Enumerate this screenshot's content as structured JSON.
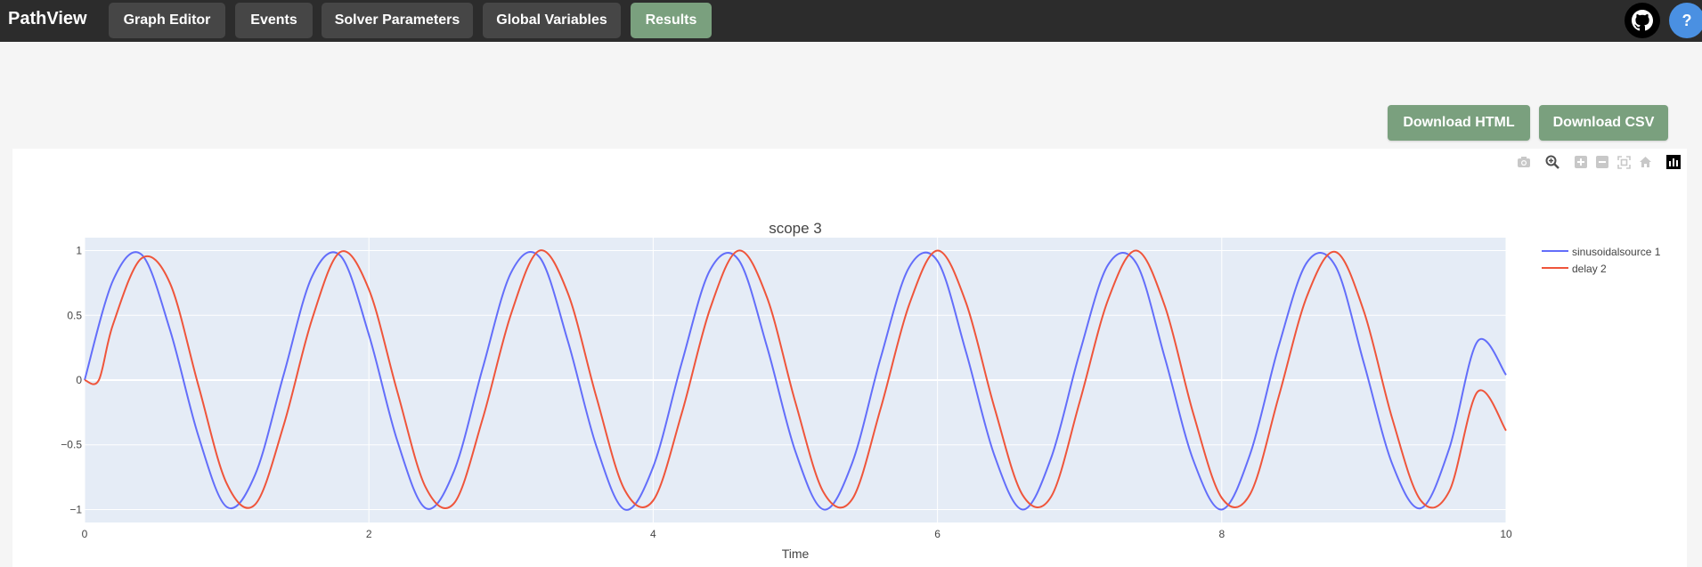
{
  "app": {
    "brand": "PathView"
  },
  "nav": {
    "tabs": [
      {
        "label": "Graph Editor"
      },
      {
        "label": "Events"
      },
      {
        "label": "Solver Parameters"
      },
      {
        "label": "Global Variables"
      },
      {
        "label": "Results"
      }
    ],
    "active_tab": "Results",
    "github_icon": "github-icon",
    "help_label": "?"
  },
  "actions": {
    "download_html": "Download HTML",
    "download_csv": "Download CSV"
  },
  "modebar": {
    "icons": [
      "camera-icon",
      "zoom-icon",
      "zoom-in-icon",
      "zoom-out-icon",
      "autoscale-icon",
      "home-icon",
      "plotly-logo-icon"
    ]
  },
  "colors": {
    "accent": "#7aa07e",
    "topbar": "#2c2c2c",
    "help": "#4a90e2",
    "series1": "#636efa",
    "series2": "#ef553b",
    "plot_bg": "#e5ecf6"
  },
  "chart_data": {
    "type": "line",
    "title": "scope 3",
    "xlabel": "Time",
    "ylabel": "",
    "xlim": [
      0,
      10
    ],
    "ylim": [
      -1.1,
      1.1
    ],
    "xticks": [
      0,
      2,
      4,
      6,
      8,
      10
    ],
    "yticks": [
      -1,
      -0.5,
      0,
      0.5,
      1
    ],
    "ytick_labels": [
      "−1",
      "−0.5",
      "0",
      "0.5",
      "1"
    ],
    "xtick_labels": [
      "0",
      "2",
      "4",
      "6",
      "8",
      "10"
    ],
    "grid": true,
    "legend_position": "right",
    "series": [
      {
        "name": "sinusoidalsource 1",
        "x": [
          0,
          0.2,
          0.4,
          0.6,
          0.8,
          1.0,
          1.2,
          1.4,
          1.6,
          1.8,
          2.0,
          2.2,
          2.4,
          2.6,
          2.8,
          3.0,
          3.2,
          3.4,
          3.6,
          3.8,
          4.0,
          4.2,
          4.4,
          4.6,
          4.8,
          5.0,
          5.2,
          5.4,
          5.6,
          5.8,
          6.0,
          6.2,
          6.4,
          6.6,
          6.8,
          7.0,
          7.2,
          7.4,
          7.6,
          7.8,
          8.0,
          8.2,
          8.4,
          8.6,
          8.8,
          9.0,
          9.2,
          9.4,
          9.6,
          9.8,
          10.0
        ],
        "y": [
          0,
          0.77,
          0.97,
          0.39,
          -0.43,
          -0.98,
          -0.73,
          0.04,
          0.8,
          0.96,
          0.35,
          -0.47,
          -0.99,
          -0.7,
          0.09,
          0.83,
          0.95,
          0.3,
          -0.51,
          -1.0,
          -0.67,
          0.13,
          0.85,
          0.93,
          0.26,
          -0.55,
          -1.0,
          -0.64,
          0.17,
          0.87,
          0.92,
          0.22,
          -0.58,
          -1.0,
          -0.6,
          0.21,
          0.89,
          0.9,
          0.17,
          -0.62,
          -1.0,
          -0.57,
          0.26,
          0.91,
          0.88,
          0.13,
          -0.65,
          -0.99,
          -0.53,
          0.3,
          0.04
        ]
      },
      {
        "name": "delay 2",
        "x": [
          0,
          0.1,
          0.2,
          0.4,
          0.6,
          0.8,
          1.0,
          1.2,
          1.4,
          1.6,
          1.8,
          2.0,
          2.2,
          2.4,
          2.6,
          2.8,
          3.0,
          3.2,
          3.4,
          3.6,
          3.8,
          4.0,
          4.2,
          4.4,
          4.6,
          4.8,
          5.0,
          5.2,
          5.4,
          5.6,
          5.8,
          6.0,
          6.2,
          6.4,
          6.6,
          6.8,
          7.0,
          7.2,
          7.4,
          7.6,
          7.8,
          8.0,
          8.2,
          8.4,
          8.6,
          8.8,
          9.0,
          9.2,
          9.4,
          9.6,
          9.8,
          10.0
        ],
        "y": [
          0,
          0,
          0.43,
          0.94,
          0.75,
          -0.04,
          -0.8,
          -0.96,
          -0.35,
          0.47,
          0.99,
          0.7,
          -0.09,
          -0.83,
          -0.95,
          -0.3,
          0.51,
          1.0,
          0.67,
          -0.13,
          -0.85,
          -0.93,
          -0.26,
          0.55,
          1.0,
          0.64,
          -0.17,
          -0.87,
          -0.92,
          -0.22,
          0.58,
          1.0,
          0.6,
          -0.21,
          -0.89,
          -0.9,
          -0.17,
          0.62,
          1.0,
          0.57,
          -0.26,
          -0.91,
          -0.88,
          -0.13,
          0.65,
          0.99,
          0.53,
          -0.3,
          -0.93,
          -0.86,
          -0.09,
          -0.39
        ]
      }
    ]
  }
}
